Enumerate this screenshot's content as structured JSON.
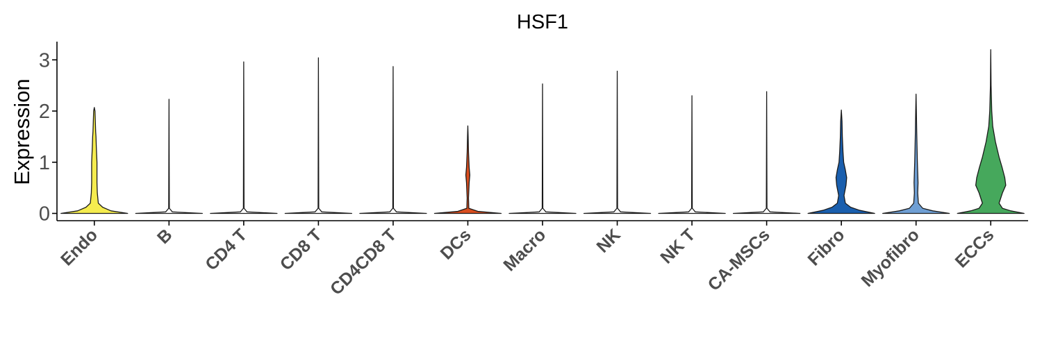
{
  "chart_data": {
    "type": "violin",
    "title": "HSF1",
    "xlabel": "",
    "ylabel": "Expression",
    "ylim": [
      -0.15,
      3.35
    ],
    "yticks": [
      0,
      1,
      2,
      3
    ],
    "grid": false,
    "legend": "none",
    "categories": [
      "Endo",
      "B",
      "CD4 T",
      "CD8 T",
      "CD4CD8 T",
      "DCs",
      "Macro",
      "NK",
      "NK T",
      "CA-MSCs",
      "Fibro",
      "Myofibro",
      "ECCs"
    ],
    "max_values": [
      2.07,
      2.23,
      2.96,
      3.04,
      2.87,
      1.71,
      2.53,
      2.78,
      2.3,
      2.38,
      2.02,
      2.33,
      3.2
    ],
    "colors": [
      "#f5ec4f",
      "#ffffff",
      "#ffffff",
      "#ffffff",
      "#ffffff",
      "#d94e1f",
      "#ffffff",
      "#ffffff",
      "#ffffff",
      "#ffffff",
      "#1a5fae",
      "#6f9fd4",
      "#46a85c"
    ],
    "densities": [
      [
        [
          0,
          1.0
        ],
        [
          0.05,
          0.5
        ],
        [
          0.12,
          0.25
        ],
        [
          0.2,
          0.12
        ],
        [
          0.4,
          0.09
        ],
        [
          0.6,
          0.08
        ],
        [
          1.0,
          0.08
        ],
        [
          1.3,
          0.06
        ],
        [
          1.5,
          0.05
        ],
        [
          1.6,
          0.04
        ],
        [
          1.8,
          0.03
        ],
        [
          2.0,
          0.02
        ],
        [
          2.07,
          0
        ]
      ],
      [
        [
          0,
          1.0
        ],
        [
          0.03,
          0.1
        ],
        [
          0.1,
          0.01
        ],
        [
          2.23,
          0
        ]
      ],
      [
        [
          0,
          1.0
        ],
        [
          0.03,
          0.1
        ],
        [
          0.1,
          0.01
        ],
        [
          2.96,
          0
        ]
      ],
      [
        [
          0,
          1.0
        ],
        [
          0.03,
          0.1
        ],
        [
          0.1,
          0.01
        ],
        [
          3.04,
          0
        ]
      ],
      [
        [
          0,
          1.0
        ],
        [
          0.03,
          0.1
        ],
        [
          0.1,
          0.01
        ],
        [
          2.87,
          0
        ]
      ],
      [
        [
          0,
          1.0
        ],
        [
          0.04,
          0.3
        ],
        [
          0.1,
          0.03
        ],
        [
          0.3,
          0.02
        ],
        [
          0.6,
          0.04
        ],
        [
          0.75,
          0.06
        ],
        [
          0.9,
          0.04
        ],
        [
          1.2,
          0.02
        ],
        [
          1.5,
          0.01
        ],
        [
          1.71,
          0
        ]
      ],
      [
        [
          0,
          1.0
        ],
        [
          0.03,
          0.1
        ],
        [
          0.1,
          0.01
        ],
        [
          2.53,
          0
        ]
      ],
      [
        [
          0,
          1.0
        ],
        [
          0.03,
          0.1
        ],
        [
          0.1,
          0.01
        ],
        [
          2.78,
          0
        ]
      ],
      [
        [
          0,
          1.0
        ],
        [
          0.03,
          0.1
        ],
        [
          0.1,
          0.01
        ],
        [
          2.3,
          0
        ]
      ],
      [
        [
          0,
          1.0
        ],
        [
          0.03,
          0.1
        ],
        [
          0.1,
          0.01
        ],
        [
          2.38,
          0
        ]
      ],
      [
        [
          0,
          1.0
        ],
        [
          0.06,
          0.55
        ],
        [
          0.12,
          0.28
        ],
        [
          0.2,
          0.12
        ],
        [
          0.35,
          0.08
        ],
        [
          0.55,
          0.14
        ],
        [
          0.7,
          0.16
        ],
        [
          0.85,
          0.12
        ],
        [
          1.0,
          0.07
        ],
        [
          1.2,
          0.05
        ],
        [
          1.5,
          0.03
        ],
        [
          1.8,
          0.02
        ],
        [
          2.02,
          0
        ]
      ],
      [
        [
          0,
          1.0
        ],
        [
          0.05,
          0.5
        ],
        [
          0.1,
          0.2
        ],
        [
          0.2,
          0.07
        ],
        [
          0.4,
          0.05
        ],
        [
          0.6,
          0.06
        ],
        [
          0.8,
          0.05
        ],
        [
          1.0,
          0.04
        ],
        [
          1.3,
          0.03
        ],
        [
          1.6,
          0.02
        ],
        [
          2.0,
          0.01
        ],
        [
          2.33,
          0
        ]
      ],
      [
        [
          0,
          1.0
        ],
        [
          0.05,
          0.6
        ],
        [
          0.1,
          0.35
        ],
        [
          0.2,
          0.25
        ],
        [
          0.4,
          0.35
        ],
        [
          0.55,
          0.45
        ],
        [
          0.7,
          0.42
        ],
        [
          0.9,
          0.34
        ],
        [
          1.1,
          0.25
        ],
        [
          1.4,
          0.14
        ],
        [
          1.7,
          0.06
        ],
        [
          2.0,
          0.03
        ],
        [
          2.5,
          0.01
        ],
        [
          3.2,
          0
        ]
      ]
    ]
  }
}
